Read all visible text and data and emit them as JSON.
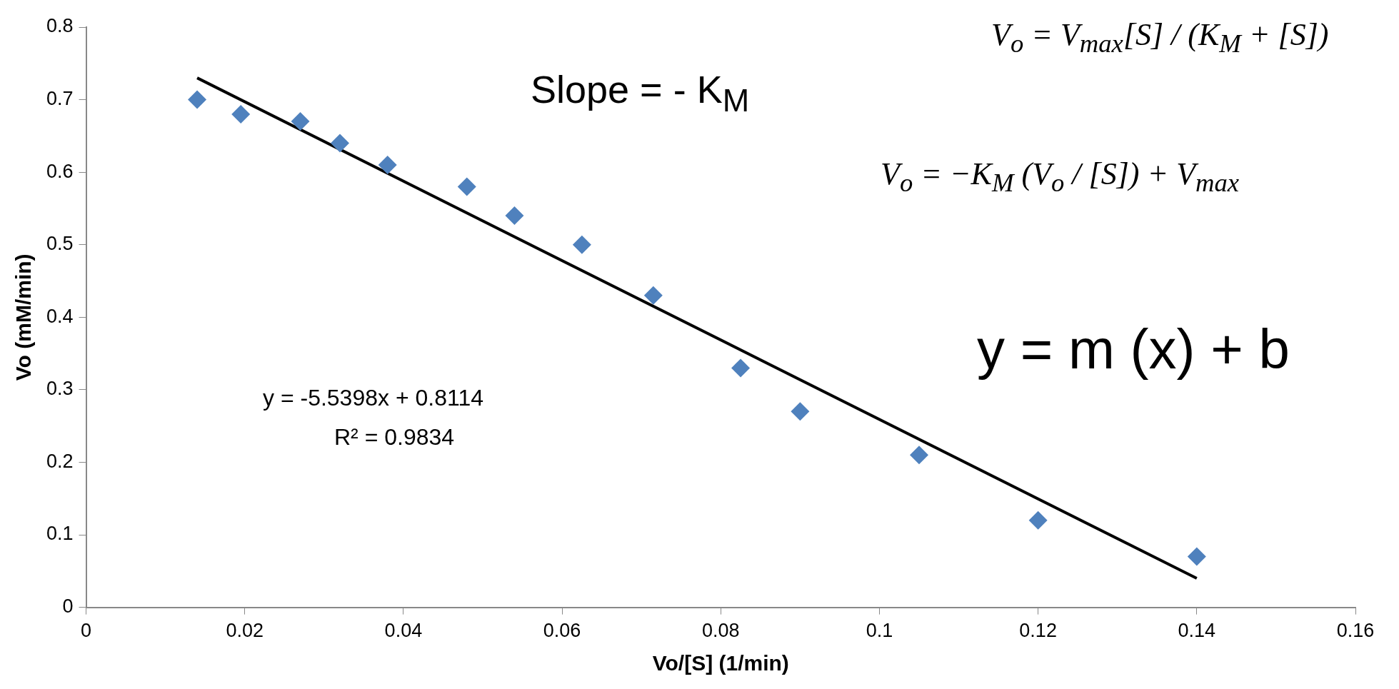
{
  "chart_data": {
    "type": "scatter",
    "xlabel": "Vo/[S] (1/min)",
    "ylabel": "Vo (mM/min)",
    "xlim": [
      0,
      0.16
    ],
    "xticks": [
      0,
      0.02,
      0.04,
      0.06,
      0.08,
      0.1,
      0.12,
      0.14,
      0.16
    ],
    "ylim": [
      0,
      0.8
    ],
    "yticks": [
      0,
      0.1,
      0.2,
      0.3,
      0.4,
      0.5,
      0.6,
      0.7,
      0.8
    ],
    "grid": false,
    "legend": false,
    "marker": "diamond",
    "series": [
      {
        "color": "#4f81bd",
        "x": [
          0.014,
          0.0195,
          0.027,
          0.032,
          0.038,
          0.048,
          0.054,
          0.0625,
          0.0715,
          0.0825,
          0.09,
          0.105,
          0.12,
          0.14
        ],
        "values": [
          0.7,
          0.68,
          0.67,
          0.64,
          0.61,
          0.58,
          0.54,
          0.5,
          0.43,
          0.33,
          0.27,
          0.21,
          0.12,
          0.07
        ]
      },
      {
        "type": "line",
        "color": "#000000",
        "marker": "none",
        "line_style": "solid",
        "x": [
          0.014,
          0.14
        ],
        "values": [
          0.73,
          0.04
        ]
      }
    ],
    "annotations": [
      "Slope = - K$_{M}$",
      "y = -5.5398x + 0.8114",
      "R² = 0.9834",
      "V$_{o}$ = V$_{max}$[S] / (K$_{M}$ + [S])",
      "V$_{o}$ = −K$_{M}$ (V$_{o}$ / [S]) + V$_{max}$",
      "y = m (x) + b"
    ]
  }
}
